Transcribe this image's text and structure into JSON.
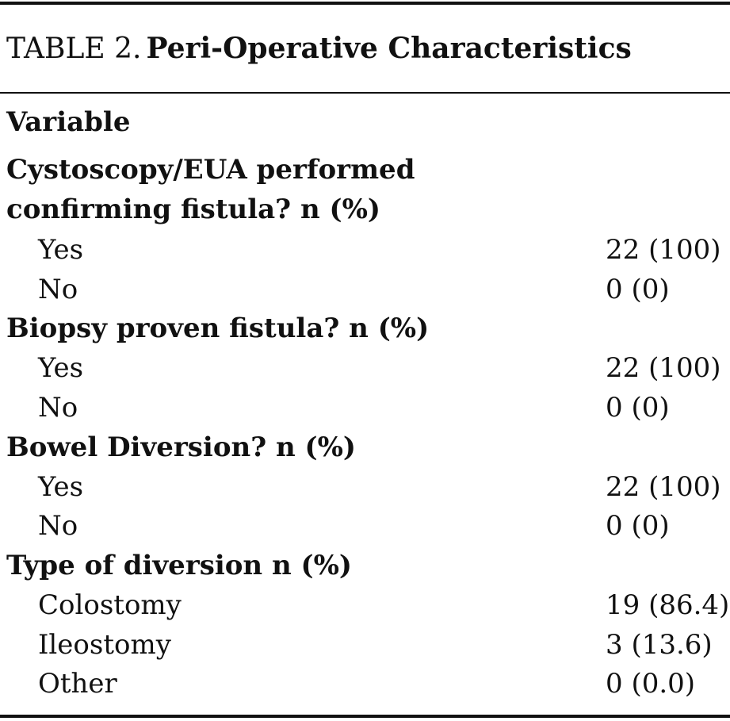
{
  "table": {
    "label": "TABLE 2.",
    "title": "Peri-Operative Characteristics",
    "column_header": "Variable",
    "groups": [
      {
        "heading": "Cystoscopy/EUA performed confirming fistula? n (%)",
        "rows": [
          {
            "label": "Yes",
            "value": "22 (100)"
          },
          {
            "label": "No",
            "value": "0 (0)"
          }
        ]
      },
      {
        "heading": "Biopsy proven fistula? n (%)",
        "rows": [
          {
            "label": "Yes",
            "value": "22 (100)"
          },
          {
            "label": "No",
            "value": "0 (0)"
          }
        ]
      },
      {
        "heading": "Bowel Diversion? n (%)",
        "rows": [
          {
            "label": "Yes",
            "value": "22 (100)"
          },
          {
            "label": "No",
            "value": "0 (0)"
          }
        ]
      },
      {
        "heading": "Type of diversion n (%)",
        "rows": [
          {
            "label": "Colostomy",
            "value": "19 (86.4)"
          },
          {
            "label": "Ileostomy",
            "value": "3 (13.6)"
          },
          {
            "label": "Other",
            "value": "0 (0.0)"
          }
        ]
      }
    ]
  }
}
